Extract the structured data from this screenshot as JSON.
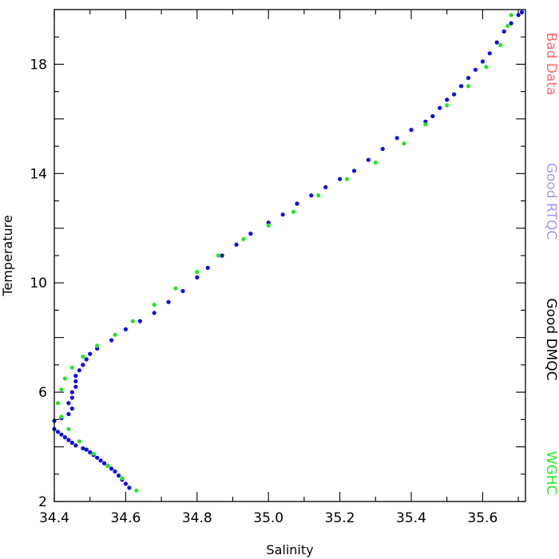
{
  "chart_data": {
    "type": "scatter",
    "xlabel": "Salinity",
    "ylabel": "Temperature",
    "xlim": [
      34.4,
      35.72
    ],
    "ylim": [
      2,
      20
    ],
    "x_ticks": [
      "34.4",
      "34.6",
      "34.8",
      "35.0",
      "35.2",
      "35.4",
      "35.6"
    ],
    "y_ticks": [
      "2",
      "6",
      "10",
      "14",
      "18"
    ],
    "legend": [
      {
        "label": "Bad Data",
        "color": "#ff6a6a"
      },
      {
        "label": "Good RTQC",
        "color": "#9c9cff"
      },
      {
        "label": "Good DMQC",
        "color": "#000000"
      },
      {
        "label": "WGHC",
        "color": "#22e822"
      }
    ],
    "series": [
      {
        "name": "Good RTQC",
        "color": "#0a0aee",
        "points": [
          [
            34.61,
            2.5
          ],
          [
            34.6,
            2.65
          ],
          [
            34.59,
            2.8
          ],
          [
            34.58,
            2.95
          ],
          [
            34.57,
            3.1
          ],
          [
            34.56,
            3.2
          ],
          [
            34.55,
            3.3
          ],
          [
            34.54,
            3.4
          ],
          [
            34.53,
            3.5
          ],
          [
            34.52,
            3.6
          ],
          [
            34.51,
            3.7
          ],
          [
            34.5,
            3.8
          ],
          [
            34.49,
            3.9
          ],
          [
            34.48,
            3.95
          ],
          [
            34.46,
            4.05
          ],
          [
            34.45,
            4.15
          ],
          [
            34.44,
            4.25
          ],
          [
            34.43,
            4.35
          ],
          [
            34.42,
            4.45
          ],
          [
            34.41,
            4.55
          ],
          [
            34.4,
            4.65
          ],
          [
            34.4,
            4.95
          ],
          [
            34.42,
            5.05
          ],
          [
            34.44,
            5.2
          ],
          [
            34.45,
            5.4
          ],
          [
            34.44,
            5.6
          ],
          [
            34.45,
            5.8
          ],
          [
            34.45,
            6.0
          ],
          [
            34.46,
            6.2
          ],
          [
            34.46,
            6.4
          ],
          [
            34.46,
            6.6
          ],
          [
            34.47,
            6.8
          ],
          [
            34.48,
            7.0
          ],
          [
            34.49,
            7.2
          ],
          [
            34.5,
            7.4
          ],
          [
            34.52,
            7.6
          ],
          [
            34.56,
            7.9
          ],
          [
            34.6,
            8.3
          ],
          [
            34.64,
            8.6
          ],
          [
            34.68,
            8.9
          ],
          [
            34.72,
            9.3
          ],
          [
            34.76,
            9.7
          ],
          [
            34.8,
            10.2
          ],
          [
            34.83,
            10.55
          ],
          [
            34.87,
            11.0
          ],
          [
            34.91,
            11.4
          ],
          [
            34.95,
            11.8
          ],
          [
            35.0,
            12.2
          ],
          [
            35.04,
            12.5
          ],
          [
            35.08,
            12.9
          ],
          [
            35.12,
            13.2
          ],
          [
            35.16,
            13.5
          ],
          [
            35.2,
            13.8
          ],
          [
            35.24,
            14.1
          ],
          [
            35.28,
            14.5
          ],
          [
            35.32,
            14.9
          ],
          [
            35.36,
            15.3
          ],
          [
            35.4,
            15.6
          ],
          [
            35.44,
            15.9
          ],
          [
            35.46,
            16.1
          ],
          [
            35.48,
            16.4
          ],
          [
            35.5,
            16.7
          ],
          [
            35.52,
            16.9
          ],
          [
            35.54,
            17.2
          ],
          [
            35.56,
            17.5
          ],
          [
            35.58,
            17.8
          ],
          [
            35.6,
            18.1
          ],
          [
            35.62,
            18.4
          ],
          [
            35.64,
            18.8
          ],
          [
            35.66,
            19.2
          ],
          [
            35.68,
            19.5
          ],
          [
            35.7,
            19.8
          ],
          [
            35.71,
            19.9
          ]
        ]
      },
      {
        "name": "WGHC",
        "color": "#22e822",
        "points": [
          [
            34.63,
            2.4
          ],
          [
            34.59,
            2.85
          ],
          [
            34.55,
            3.3
          ],
          [
            34.51,
            3.75
          ],
          [
            34.47,
            4.2
          ],
          [
            34.44,
            4.65
          ],
          [
            34.42,
            5.1
          ],
          [
            34.41,
            5.6
          ],
          [
            34.42,
            6.1
          ],
          [
            34.43,
            6.5
          ],
          [
            34.45,
            6.9
          ],
          [
            34.48,
            7.3
          ],
          [
            34.52,
            7.7
          ],
          [
            34.57,
            8.1
          ],
          [
            34.62,
            8.6
          ],
          [
            34.68,
            9.2
          ],
          [
            34.74,
            9.8
          ],
          [
            34.8,
            10.4
          ],
          [
            34.86,
            11.0
          ],
          [
            34.93,
            11.6
          ],
          [
            35.0,
            12.1
          ],
          [
            35.07,
            12.6
          ],
          [
            35.14,
            13.2
          ],
          [
            35.22,
            13.8
          ],
          [
            35.3,
            14.4
          ],
          [
            35.38,
            15.1
          ],
          [
            35.44,
            15.8
          ],
          [
            35.5,
            16.5
          ],
          [
            35.56,
            17.2
          ],
          [
            35.61,
            17.9
          ],
          [
            35.65,
            18.7
          ],
          [
            35.67,
            19.4
          ],
          [
            35.68,
            19.8
          ]
        ]
      }
    ]
  }
}
